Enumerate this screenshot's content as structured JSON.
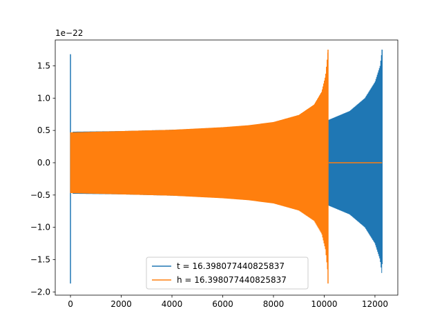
{
  "chart_data": {
    "type": "line",
    "title": "",
    "xlabel": "",
    "ylabel": "",
    "y_offset_label": "1e−22",
    "xlim": [
      -600,
      12900
    ],
    "ylim": [
      -2.05,
      1.9
    ],
    "x_ticks": [
      0,
      2000,
      4000,
      6000,
      8000,
      10000,
      12000
    ],
    "x_tick_labels": [
      "0",
      "2000",
      "4000",
      "6000",
      "8000",
      "10000",
      "12000"
    ],
    "y_ticks": [
      -2.0,
      -1.5,
      -1.0,
      -0.5,
      0.0,
      0.5,
      1.0,
      1.5
    ],
    "y_tick_labels": [
      "−2.0",
      "−1.5",
      "−1.0",
      "−0.5",
      "0.0",
      "0.5",
      "1.0",
      "1.5"
    ],
    "grid": false,
    "legend_position": "lower-center",
    "series": [
      {
        "name": "t = 16.398077440825837",
        "color": "#1f77b4",
        "x_range": [
          0,
          12280
        ],
        "start_spike": {
          "x": 0,
          "max": 1.68,
          "min": -1.87
        },
        "envelope": [
          [
            100,
            0.48
          ],
          [
            2000,
            0.49
          ],
          [
            4000,
            0.51
          ],
          [
            6000,
            0.54
          ],
          [
            8000,
            0.58
          ],
          [
            9500,
            0.62
          ],
          [
            10150,
            0.66
          ],
          [
            11000,
            0.8
          ],
          [
            11600,
            1.0
          ],
          [
            12000,
            1.25
          ],
          [
            12200,
            1.5
          ],
          [
            12280,
            1.75
          ]
        ],
        "end_value": {
          "x": 12280,
          "max": 1.75,
          "min": -1.57
        }
      },
      {
        "name": "h = 16.398077440825837",
        "color": "#ff7f0e",
        "x_range": [
          0,
          12280
        ],
        "envelope": [
          [
            0,
            0.47
          ],
          [
            2000,
            0.49
          ],
          [
            4000,
            0.51
          ],
          [
            6000,
            0.55
          ],
          [
            7000,
            0.58
          ],
          [
            8000,
            0.63
          ],
          [
            9000,
            0.74
          ],
          [
            9600,
            0.9
          ],
          [
            9900,
            1.1
          ],
          [
            10050,
            1.35
          ],
          [
            10150,
            1.75
          ]
        ],
        "end_value": {
          "x": 10150,
          "max": 1.75,
          "min": -1.87
        },
        "flat_after": {
          "x": [
            10180,
            12280
          ],
          "y": 0.0
        }
      }
    ]
  }
}
